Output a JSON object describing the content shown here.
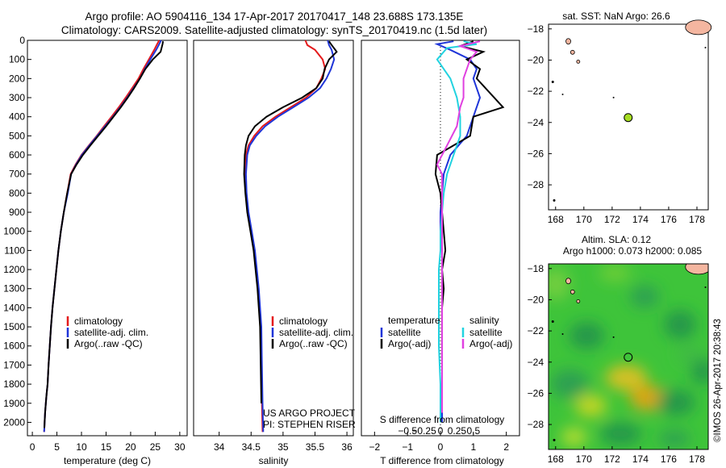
{
  "header": {
    "line1": "Argo profile: AO 5904116_134 17-Apr-2017 20170417_148 23.688S 173.135E",
    "line2": "Climatology: CARS2009. Satellite-adjusted climatology: synTS_20170419.nc (1.5d later)"
  },
  "credit": {
    "project": "US ARGO PROJECT",
    "pi": "PI: STEPHEN RISER",
    "imos": "©IMOS 26-Apr-2017 20:38:43"
  },
  "colors": {
    "climatology": "#e41a1c",
    "satellite": "#1f35d8",
    "argo": "#000000",
    "sal_satellite": "#22d3e0",
    "sal_argo": "#e040e0",
    "land": "#f4b6a0",
    "marker": "#a6dd22"
  },
  "chart_data": [
    {
      "id": "temperature",
      "type": "line",
      "xlabel": "temperature (deg C)",
      "ylabel": "",
      "xlim": [
        -1,
        31.5
      ],
      "ylim": [
        2070,
        0
      ],
      "xticks": [
        0,
        5,
        10,
        15,
        20,
        25,
        30
      ],
      "yticks": [
        0,
        100,
        200,
        300,
        400,
        500,
        600,
        700,
        800,
        900,
        1000,
        1100,
        1200,
        1300,
        1400,
        1500,
        1600,
        1700,
        1800,
        1900,
        2000
      ],
      "legend": [
        "climatology",
        "satellite-adj. clim.",
        "Argo(..raw -QC)"
      ],
      "series": [
        {
          "name": "climatology",
          "color": "#e41a1c",
          "x": [
            25.8,
            25.3,
            24.8,
            23.7,
            22.6,
            21.6,
            20.3,
            19.0,
            17.6,
            16.1,
            14.6,
            13.1,
            11.5,
            10.0,
            8.8,
            7.8,
            7.1,
            6.4,
            5.8,
            5.3,
            4.9,
            4.5,
            4.1,
            3.8,
            3.55,
            3.3,
            3.1,
            2.9,
            2.75,
            2.6,
            2.5,
            2.45,
            2.4
          ],
          "y": [
            0,
            25,
            50,
            100,
            150,
            200,
            250,
            300,
            350,
            400,
            450,
            500,
            550,
            600,
            650,
            700,
            800,
            900,
            1000,
            1100,
            1200,
            1300,
            1400,
            1500,
            1600,
            1700,
            1800,
            1850,
            1900,
            1950,
            2000,
            2030,
            2050
          ]
        },
        {
          "name": "satellite-adj. clim.",
          "color": "#1f35d8",
          "x": [
            26.2,
            25.7,
            25.2,
            24.0,
            22.9,
            21.9,
            20.6,
            19.3,
            17.9,
            16.4,
            14.8,
            13.2,
            11.6,
            10.1,
            8.9,
            7.9,
            7.2,
            6.4,
            5.8,
            5.3,
            4.9,
            4.5,
            4.1,
            3.8,
            3.55,
            3.3,
            3.1,
            2.9,
            2.75,
            2.6,
            2.5,
            2.45,
            2.4
          ],
          "y": [
            0,
            25,
            50,
            100,
            150,
            200,
            250,
            300,
            350,
            400,
            450,
            500,
            550,
            600,
            650,
            700,
            800,
            900,
            1000,
            1100,
            1200,
            1300,
            1400,
            1500,
            1600,
            1700,
            1800,
            1850,
            1900,
            1950,
            2000,
            2030,
            2050
          ]
        },
        {
          "name": "Argo(..raw -QC)",
          "color": "#000000",
          "x": [
            26.6,
            26.5,
            26.3,
            26.1,
            24.5,
            23.0,
            21.9,
            20.7,
            19.4,
            18.0,
            16.5,
            15.0,
            13.4,
            11.8,
            10.3,
            9.0,
            7.9,
            7.1,
            6.4,
            5.8,
            5.3,
            4.9,
            4.5,
            4.1,
            3.8,
            3.55,
            3.3,
            3.1,
            2.9,
            2.75,
            2.6,
            2.5,
            2.45
          ],
          "y": [
            5,
            20,
            40,
            60,
            100,
            150,
            200,
            250,
            300,
            350,
            400,
            450,
            500,
            550,
            600,
            650,
            700,
            800,
            900,
            1000,
            1100,
            1200,
            1300,
            1400,
            1500,
            1600,
            1700,
            1800,
            1850,
            1900,
            1950,
            2000,
            2030
          ]
        }
      ]
    },
    {
      "id": "salinity",
      "type": "line",
      "xlabel": "salinity",
      "ylabel": "",
      "xlim": [
        33.6,
        36.1
      ],
      "ylim": [
        2070,
        0
      ],
      "xticks": [
        34,
        34.5,
        35,
        35.5,
        36
      ],
      "legend": [
        "climatology",
        "satellite-adj. clim.",
        "Argo(..raw -QC)"
      ],
      "series": [
        {
          "name": "climatology",
          "color": "#e41a1c",
          "x": [
            35.35,
            35.38,
            35.5,
            35.62,
            35.66,
            35.6,
            35.52,
            35.36,
            35.12,
            34.88,
            34.68,
            34.55,
            34.46,
            34.42,
            34.41,
            34.42,
            34.45,
            34.5,
            34.55,
            34.58,
            34.61,
            34.63,
            34.65,
            34.66,
            34.67,
            34.68
          ],
          "y": [
            0,
            25,
            50,
            100,
            150,
            200,
            250,
            300,
            350,
            400,
            450,
            500,
            550,
            600,
            700,
            800,
            900,
            1000,
            1100,
            1200,
            1300,
            1400,
            1500,
            1700,
            1900,
            2050
          ]
        },
        {
          "name": "satellite-adj. clim.",
          "color": "#1f35d8",
          "x": [
            35.7,
            35.72,
            35.76,
            35.8,
            35.75,
            35.68,
            35.58,
            35.4,
            35.16,
            34.92,
            34.72,
            34.58,
            34.48,
            34.44,
            34.42,
            34.43,
            34.46,
            34.51,
            34.56,
            34.59,
            34.62,
            34.64,
            34.66,
            34.67,
            34.68,
            34.69
          ],
          "y": [
            0,
            25,
            50,
            100,
            150,
            200,
            250,
            300,
            350,
            400,
            450,
            500,
            550,
            600,
            700,
            800,
            900,
            1000,
            1100,
            1200,
            1300,
            1400,
            1500,
            1700,
            1900,
            2050
          ]
        },
        {
          "name": "Argo(..raw -QC)",
          "color": "#000000",
          "x": [
            35.72,
            35.75,
            35.84,
            35.72,
            35.65,
            35.62,
            35.52,
            35.3,
            35.0,
            34.74,
            34.56,
            34.46,
            34.42,
            34.4,
            34.39,
            34.41,
            34.44,
            34.49,
            34.54,
            34.57,
            34.6,
            34.62,
            34.64,
            34.65,
            34.66
          ],
          "y": [
            5,
            20,
            60,
            100,
            150,
            200,
            250,
            300,
            350,
            400,
            450,
            500,
            550,
            600,
            700,
            800,
            900,
            1000,
            1100,
            1200,
            1300,
            1400,
            1500,
            1700,
            1900
          ]
        }
      ]
    },
    {
      "id": "difference",
      "type": "line",
      "xlabel": "T difference from climatology",
      "toplabel": "S difference from climatology",
      "xlim": [
        -2.4,
        2.4
      ],
      "ylim": [
        2070,
        0
      ],
      "xticks": [
        -2,
        -1,
        0,
        1,
        2
      ],
      "sticks": [
        -0.5,
        -0.25,
        0,
        0.25,
        0.5
      ],
      "legend": {
        "temperature_title": "temperature",
        "salinity_title": "salinity",
        "t_satellite": "satellite",
        "t_argo": "Argo(-adj)",
        "s_satellite": "satellite",
        "s_argo": "Argo(-adj)"
      },
      "series": [
        {
          "name": "temperature satellite",
          "color": "#1f35d8",
          "x": [
            0.4,
            -0.1,
            0.3,
            0.9,
            1.1,
            1.0,
            1.2,
            1.0,
            0.8,
            0.3,
            0.1,
            0.05,
            0.0,
            0.0,
            0.05,
            0.05,
            0.05,
            0.05,
            0.05,
            0.05,
            0.05,
            0.05,
            0.05,
            0.05
          ],
          "y": [
            5,
            20,
            50,
            100,
            150,
            200,
            300,
            400,
            500,
            600,
            700,
            800,
            900,
            1000,
            1100,
            1200,
            1300,
            1400,
            1500,
            1600,
            1700,
            1800,
            1900,
            2000
          ]
        },
        {
          "name": "temperature Argo",
          "color": "#000000",
          "x": [
            1.0,
            0.6,
            1.3,
            0.8,
            1.2,
            1.1,
            1.9,
            1.0,
            0.9,
            -0.1,
            -0.15,
            0.0,
            0.05,
            0.1,
            0.15,
            0.05,
            0.1,
            0.05,
            0.05,
            0.05,
            0.05,
            0.05,
            0.05
          ],
          "y": [
            5,
            30,
            60,
            100,
            150,
            200,
            350,
            400,
            500,
            600,
            700,
            800,
            900,
            1000,
            1100,
            1200,
            1300,
            1400,
            1500,
            1600,
            1700,
            1800,
            1950
          ]
        },
        {
          "name": "salinity satellite",
          "color": "#22d3e0",
          "x": [
            0.7,
            1.1,
            0.2,
            -0.1,
            0.3,
            0.5,
            0.6,
            0.6,
            0.4,
            0.2,
            0.1,
            0.05,
            0.0,
            0.0,
            -0.05,
            -0.05,
            -0.05,
            -0.05,
            0.0,
            0.0
          ],
          "y": [
            5,
            20,
            40,
            100,
            200,
            300,
            400,
            500,
            600,
            700,
            800,
            900,
            1000,
            1100,
            1200,
            1300,
            1400,
            1600,
            1800,
            2000
          ]
        },
        {
          "name": "salinity Argo",
          "color": "#e040e0",
          "x": [
            1.2,
            0.6,
            1.1,
            0.9,
            0.7,
            0.7,
            0.6,
            0.5,
            0.2,
            -0.1,
            0.05,
            0.05,
            0.05,
            0.05,
            0.05,
            0.05,
            0.05,
            0.05,
            0.05
          ],
          "y": [
            5,
            30,
            60,
            100,
            200,
            300,
            350,
            450,
            550,
            650,
            700,
            800,
            900,
            1000,
            1200,
            1400,
            1600,
            1800,
            1950
          ]
        }
      ]
    },
    {
      "id": "map_sst",
      "type": "scatter",
      "title": "sat. SST: NaN Argo: 26.6",
      "xlim": [
        167.5,
        178.8
      ],
      "ylim": [
        -29.6,
        -17.7
      ],
      "xticks": [
        168,
        170,
        172,
        174,
        176,
        178
      ],
      "yticks": [
        -18,
        -20,
        -22,
        -24,
        -26,
        -28
      ],
      "points": [
        {
          "x": 173.135,
          "y": -23.688
        }
      ]
    },
    {
      "id": "map_sla",
      "type": "heatmap",
      "title": "Altim. SLA: 0.12",
      "subtitle": "Argo h1000: 0.073 h2000: 0.085",
      "xlim": [
        167.5,
        178.8
      ],
      "ylim": [
        -29.6,
        -17.7
      ],
      "xticks": [
        168,
        170,
        172,
        174,
        176,
        178
      ],
      "yticks": [
        -18,
        -20,
        -22,
        -24,
        -26,
        -28
      ],
      "points": [
        {
          "x": 173.135,
          "y": -23.688
        }
      ]
    }
  ]
}
